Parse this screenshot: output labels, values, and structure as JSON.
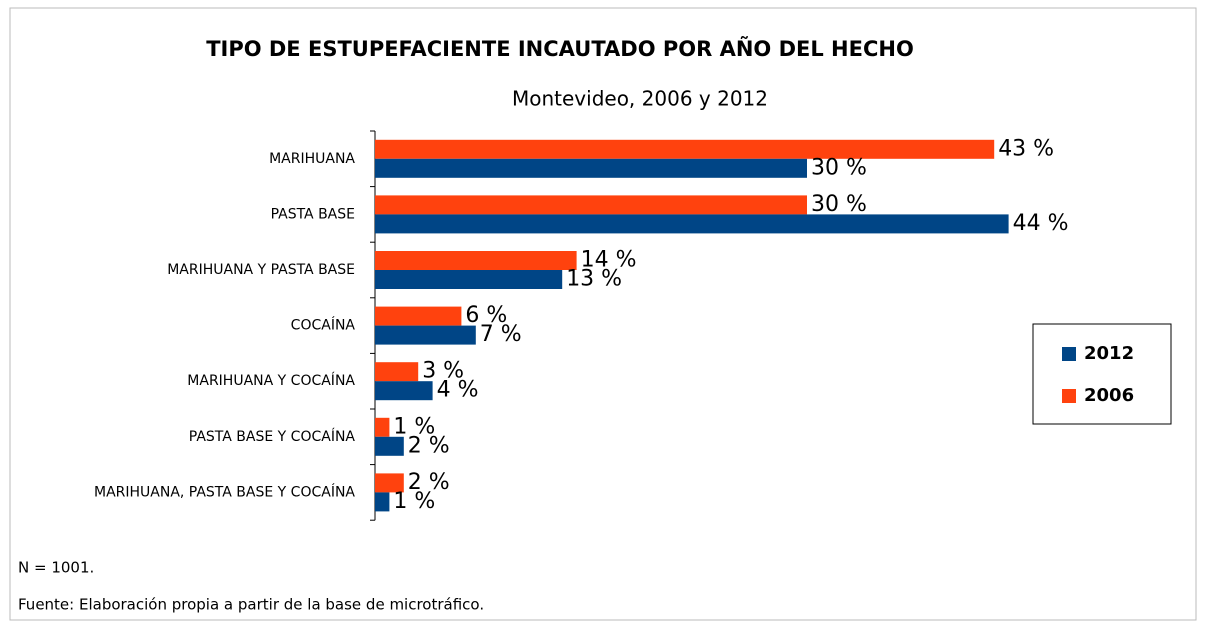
{
  "chart_data": {
    "type": "hbar",
    "title": "TIPO DE ESTUPEFACIENTE INCAUTADO POR AÑO DEL HECHO",
    "subtitle": "Montevideo, 2006 y 2012",
    "categories": [
      "MARIHUANA",
      "PASTA BASE",
      "MARIHUANA Y PASTA BASE",
      "COCAÍNA",
      "MARIHUANA Y COCAÍNA",
      "PASTA BASE Y COCAÍNA",
      "MARIHUANA, PASTA BASE Y COCAÍNA"
    ],
    "series": [
      {
        "name": "2012",
        "color": "#004586",
        "values": [
          30,
          44,
          13,
          7,
          4,
          2,
          1
        ],
        "value_labels": [
          "30 %",
          "44 %",
          "13 %",
          "7 %",
          "4 %",
          "2 %",
          "1 %"
        ]
      },
      {
        "name": "2006",
        "color": "#ff420e",
        "values": [
          43,
          30,
          14,
          6,
          3,
          1,
          2
        ],
        "value_labels": [
          "43 %",
          "30 %",
          "14 %",
          "6 %",
          "3 %",
          "1 %",
          "2 %"
        ]
      }
    ],
    "legend": "right"
  },
  "notes": [
    "N = 1001.",
    "Fuente: Elaboración propia a partir de la base de microtráfico."
  ]
}
